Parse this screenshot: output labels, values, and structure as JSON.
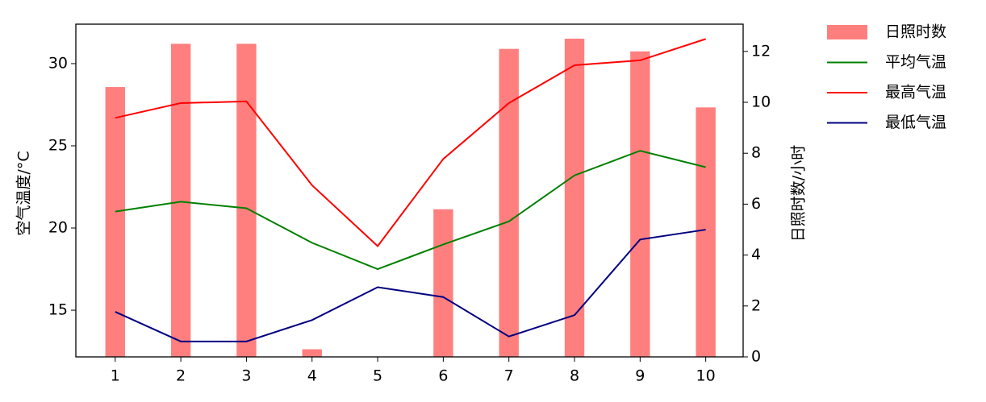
{
  "chart_data": {
    "type": "combo",
    "x": [
      1,
      2,
      3,
      4,
      5,
      6,
      7,
      8,
      9,
      10
    ],
    "xlim": [
      0.4,
      10.57
    ],
    "xticks": [
      1,
      2,
      3,
      4,
      5,
      6,
      7,
      8,
      9,
      10
    ],
    "ylabel": "空气温度/°C",
    "ylim": [
      12.16,
      32.4
    ],
    "yticks": [
      15,
      20,
      25,
      30
    ],
    "y2label": "日照时数/小时",
    "y2lim": [
      0,
      13.07
    ],
    "y2ticks": [
      0,
      2,
      4,
      6,
      8,
      10,
      12
    ],
    "legend": "outside-right",
    "series": [
      {
        "name": "日照时数",
        "type": "bar",
        "axis": "y2",
        "color": "#ff7f7f",
        "values": [
          10.6,
          12.3,
          12.3,
          0.3,
          0,
          5.8,
          12.1,
          12.5,
          12.0,
          9.8
        ]
      },
      {
        "name": "平均气温",
        "type": "line",
        "color": "#008000",
        "values": [
          21.0,
          21.6,
          21.2,
          19.1,
          17.5,
          19.0,
          20.4,
          23.2,
          24.7,
          23.7
        ]
      },
      {
        "name": "最高气温",
        "type": "line",
        "color": "#ff0000",
        "values": [
          26.7,
          27.6,
          27.7,
          22.6,
          18.9,
          24.2,
          27.6,
          29.9,
          30.2,
          31.5
        ]
      },
      {
        "name": "最低气温",
        "type": "line",
        "color": "#000080",
        "values": [
          14.9,
          13.1,
          13.1,
          14.4,
          16.4,
          15.8,
          13.4,
          14.7,
          19.3,
          19.9
        ]
      }
    ]
  }
}
